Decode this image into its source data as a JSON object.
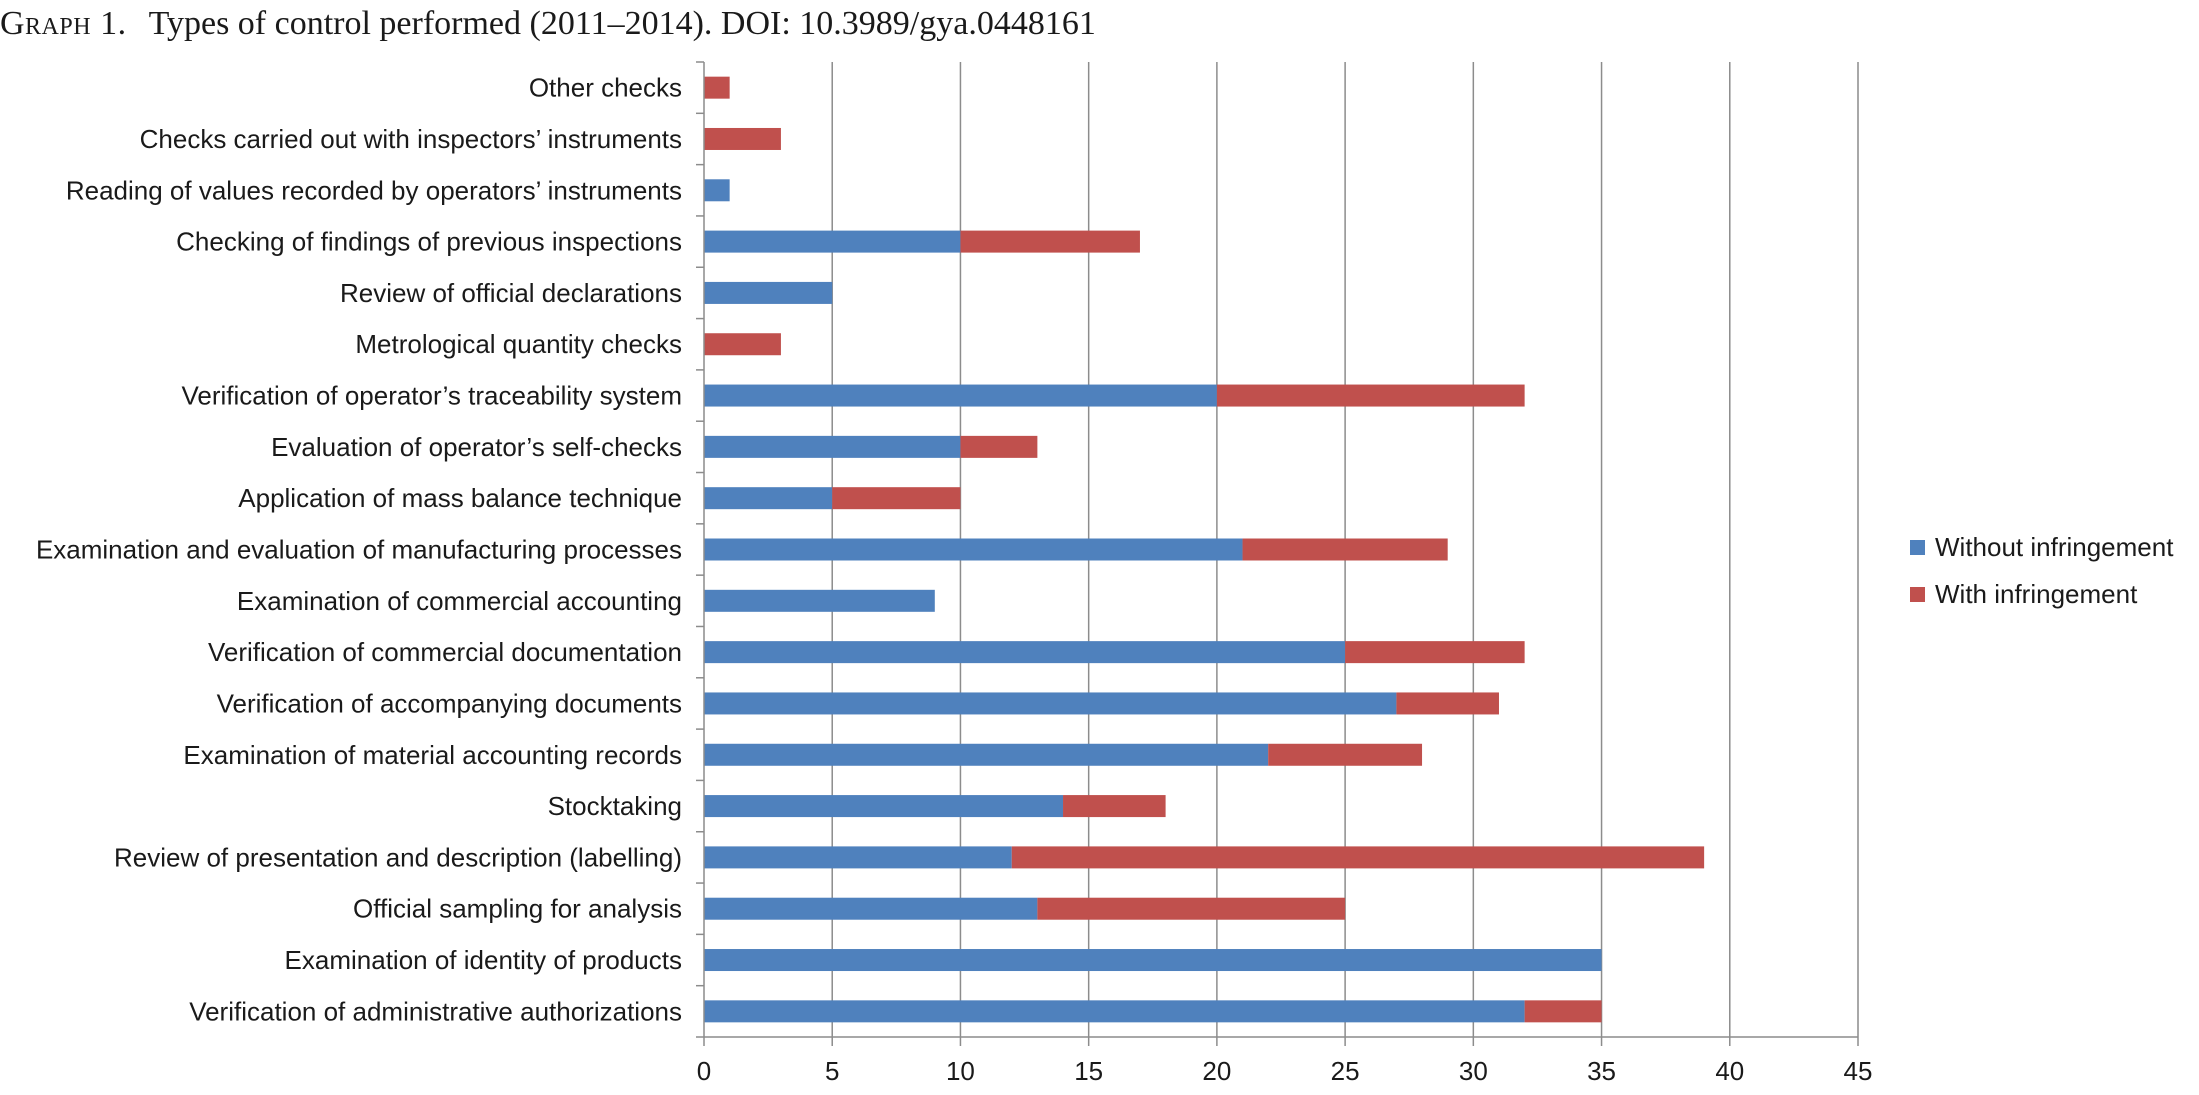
{
  "caption": {
    "prefix": "Graph 1.",
    "text": "Types of control performed (2011–2014). DOI: 10.3989/gya.0448161"
  },
  "chart_data": {
    "type": "bar",
    "orientation": "horizontal",
    "stacked": true,
    "categories": [
      "Other checks",
      "Checks carried out with inspectors’ instruments",
      "Reading of values recorded by operators’ instruments",
      "Checking of findings of previous inspections",
      "Review of official declarations",
      "Metrological quantity checks",
      "Verification of operator’s traceability system",
      "Evaluation of operator’s self-checks",
      "Application of mass balance technique",
      "Examination and evaluation of manufacturing processes",
      "Examination of commercial accounting",
      "Verification of commercial documentation",
      "Verification of accompanying documents",
      "Examination of material accounting records",
      "Stocktaking",
      "Review of presentation and description (labelling)",
      "Official sampling for analysis",
      "Examination of identity of products",
      "Verification of administrative authorizations"
    ],
    "series": [
      {
        "name": "Without infringement",
        "color": "#4F81BD",
        "values": [
          0,
          0,
          1,
          10,
          5,
          0,
          20,
          10,
          5,
          21,
          9,
          25,
          27,
          22,
          14,
          12,
          13,
          35,
          32
        ]
      },
      {
        "name": "With infringement",
        "color": "#C0504D",
        "values": [
          1,
          3,
          0,
          7,
          0,
          3,
          12,
          3,
          5,
          8,
          0,
          7,
          4,
          6,
          4,
          27,
          12,
          0,
          3
        ]
      }
    ],
    "xlim": [
      0,
      45
    ],
    "xticks": [
      0,
      5,
      10,
      15,
      20,
      25,
      30,
      35,
      40,
      45
    ],
    "grid": "vertical",
    "legend": "right"
  }
}
